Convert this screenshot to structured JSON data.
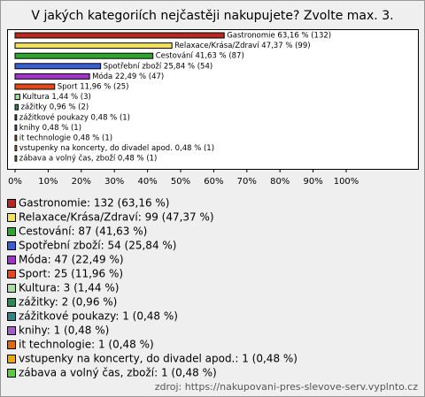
{
  "chart_data": {
    "type": "bar",
    "orientation": "horizontal",
    "title": "V jakých kategoriích nejčastěji nakupujete? Zvolte max. 3.",
    "categories": [
      "Gastronomie",
      "Relaxace/Krása/Zdraví",
      "Cestování",
      "Spotřební zboží",
      "Móda",
      "Sport",
      "Kultura",
      "zážitky",
      "zážitkové poukazy",
      "knihy",
      "it technologie",
      "vstupenky na koncerty, do divadel apod.",
      "zábava a volný čas, zboží"
    ],
    "values": [
      63.16,
      47.37,
      41.63,
      25.84,
      22.49,
      11.96,
      1.44,
      0.96,
      0.48,
      0.48,
      0.48,
      0.48,
      0.48
    ],
    "value_labels": [
      "Gastronomie 63,16 % (132)",
      "Relaxace/Krása/Zdraví 47,37 % (99)",
      "Cestování 41,63 % (87)",
      "Spotřební zboží 25,84 % (54)",
      "Móda 22,49 % (47)",
      "Sport 11,96 % (25)",
      "Kultura 1,44 % (3)",
      "zážitky 0,96 % (2)",
      "zážitkové poukazy 0,48 % (1)",
      "knihy 0,48 % (1)",
      "it technologie 0,48 % (1)",
      "vstupenky na koncerty, do divadel apod. 0,48 % (1)",
      "zábava a volný čas, zboží 0,48 % (1)"
    ],
    "legend_labels": [
      "Gastronomie: 132 (63,16 %)",
      "Relaxace/Krása/Zdraví: 99 (47,37 %)",
      "Cestování: 87 (41,63 %)",
      "Spotřební zboží: 54 (25,84 %)",
      "Móda: 47 (22,49 %)",
      "Sport: 25 (11,96 %)",
      "Kultura: 3 (1,44 %)",
      "zážitky: 2 (0,96 %)",
      "zážitkové poukazy: 1 (0,48 %)",
      "knihy: 1 (0,48 %)",
      "it technologie: 1 (0,48 %)",
      "vstupenky na koncerty, do divadel apod.: 1 (0,48 %)",
      "zábava a volný čas, zboží: 1 (0,48 %)"
    ],
    "colors": [
      "#b8281e",
      "#f2e25a",
      "#2ea62e",
      "#3a5fd0",
      "#a033c8",
      "#e2481a",
      "#a8dca0",
      "#2a8a55",
      "#2f8585",
      "#a060c8",
      "#e06810",
      "#e8a810",
      "#5ccc3a"
    ],
    "xlim": [
      0,
      100
    ],
    "xticks": [
      {
        "value": 0,
        "label": "0%"
      },
      {
        "value": 10,
        "label": "10%"
      },
      {
        "value": 20,
        "label": "20%"
      },
      {
        "value": 30,
        "label": "30%"
      },
      {
        "value": 40,
        "label": "40%"
      },
      {
        "value": 50,
        "label": "50%"
      },
      {
        "value": 60,
        "label": "60%"
      },
      {
        "value": 70,
        "label": "70%"
      },
      {
        "value": 80,
        "label": "80%"
      },
      {
        "value": 90,
        "label": "90%"
      },
      {
        "value": 100,
        "label": "100%"
      }
    ],
    "source": "zdroj: https://nakupovani-pres-slevove-serv.vyplnto.cz"
  }
}
